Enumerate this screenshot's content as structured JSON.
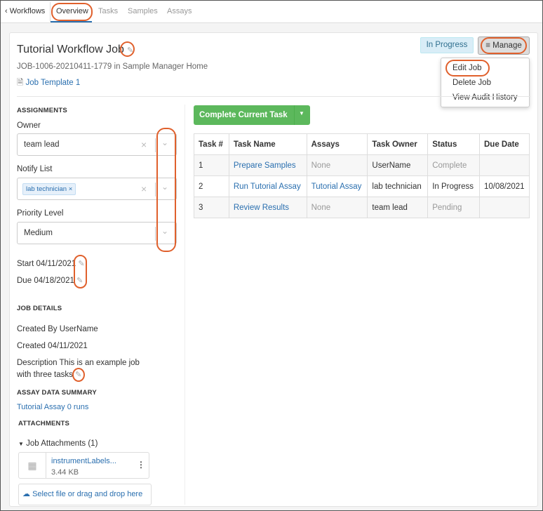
{
  "nav": {
    "back": "Workflows",
    "tabs": [
      "Overview",
      "Tasks",
      "Samples",
      "Assays"
    ],
    "active": "Overview"
  },
  "header": {
    "title": "Tutorial Workflow Job",
    "subtitle": "JOB-1006-20210411-1779 in Sample Manager Home",
    "template": "Job Template 1",
    "status": "In Progress",
    "manage": "Manage"
  },
  "manage_menu": [
    "Edit Job",
    "Delete Job",
    "View Audit History"
  ],
  "assignments": {
    "heading": "ASSIGNMENTS",
    "owner_label": "Owner",
    "owner": "team lead",
    "notify_label": "Notify List",
    "notify_tag": "lab technician",
    "priority_label": "Priority Level",
    "priority": "Medium",
    "start_label": "Start",
    "start": "04/11/2021",
    "due_label": "Due",
    "due": "04/18/2021"
  },
  "job_details": {
    "heading": "JOB DETAILS",
    "created_by_label": "Created By",
    "created_by": "UserName",
    "created_label": "Created",
    "created": "04/11/2021",
    "description_label": "Description",
    "description_1": "This is an example job",
    "description_2": "with three tasks"
  },
  "assay_summary": {
    "heading": "ASSAY DATA SUMMARY",
    "assay": "Tutorial Assay",
    "runs": "0 runs"
  },
  "attachments": {
    "heading": "ATTACHMENTS",
    "group": "Job Attachments (1)",
    "file_name": "instrumentLabels...",
    "file_size": "3.44 KB",
    "upload": "Select file or drag and drop here"
  },
  "complete_button": "Complete Current Task",
  "tasks": {
    "columns": [
      "Task #",
      "Task Name",
      "Assays",
      "Task Owner",
      "Status",
      "Due Date"
    ],
    "rows": [
      [
        "1",
        "Prepare Samples",
        "None",
        "UserName",
        "Complete",
        ""
      ],
      [
        "2",
        "Run Tutorial Assay",
        "Tutorial Assay",
        "lab technician",
        "In Progress",
        "10/08/2021"
      ],
      [
        "3",
        "Review Results",
        "None",
        "team lead",
        "Pending",
        ""
      ]
    ]
  },
  "colors": {
    "accent": "#2a6faf",
    "success": "#5cb85c",
    "annotation": "#e0602c",
    "status_bg": "#d9edf7"
  }
}
